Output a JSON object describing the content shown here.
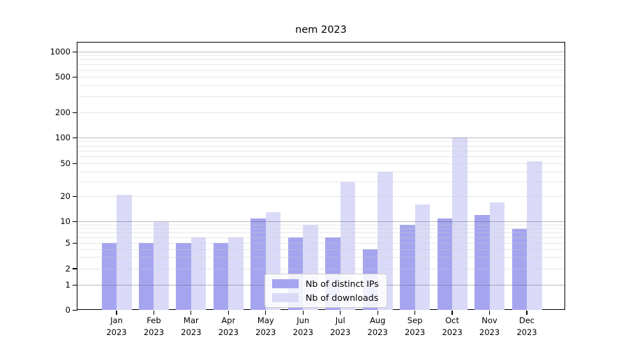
{
  "chart_data": {
    "type": "bar",
    "title": "nem 2023",
    "x_axis": {
      "categories": [
        "Jan",
        "Feb",
        "Mar",
        "Apr",
        "May",
        "Jun",
        "Jul",
        "Aug",
        "Sep",
        "Oct",
        "Nov",
        "Dec"
      ],
      "year": "2023"
    },
    "y_axis": {
      "scale": "symlog",
      "ticks": [
        1000,
        500,
        200,
        100,
        50,
        20,
        10,
        5,
        2,
        1,
        0
      ],
      "major_gridlines": [
        1,
        10,
        100,
        1000
      ],
      "minor_gridlines_per_decade": [
        2,
        3,
        4,
        5,
        6,
        7,
        8,
        9
      ],
      "ylim_bottom": 0
    },
    "series": [
      {
        "name": "Nb of distinct IPs",
        "color": "#a5a5ef",
        "values": [
          5,
          5,
          5,
          5,
          11,
          6,
          6,
          4,
          9,
          11,
          12,
          8
        ]
      },
      {
        "name": "Nb of downloads",
        "color": "#dadaf8",
        "values": [
          21,
          10,
          6,
          6,
          13,
          9,
          30,
          40,
          16,
          100,
          17,
          54
        ]
      }
    ],
    "legend": {
      "position": "lower center"
    }
  }
}
